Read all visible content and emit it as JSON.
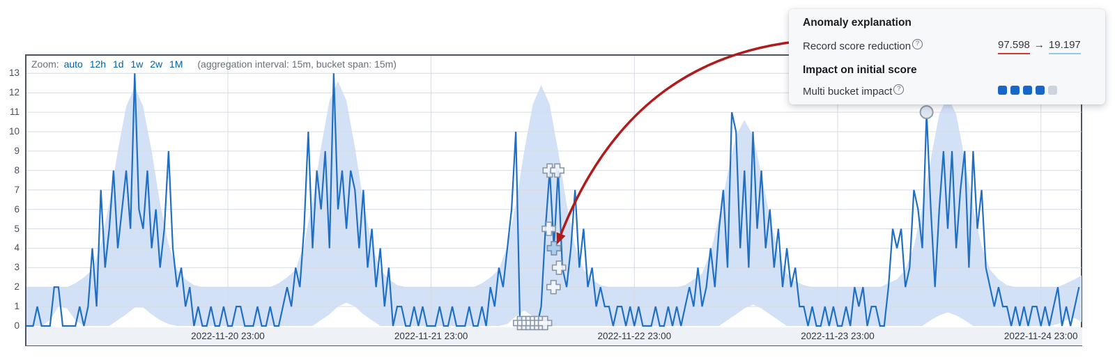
{
  "header": {
    "zoom_label": "Zoom:",
    "zoom_options": [
      "auto",
      "12h",
      "1d",
      "1w",
      "2w",
      "1M"
    ],
    "aggregation_note": "(aggregation interval: 15m, bucket span: 15m)"
  },
  "popup": {
    "title": "Anomaly explanation",
    "help_glyph": "?",
    "record_row": {
      "label": "Record score reduction",
      "score_before": "97.598",
      "arrow": "→",
      "score_after": "19.197"
    },
    "impact_header": "Impact on initial score",
    "impact_row": {
      "label": "Multi bucket impact",
      "filled_squares": 4,
      "total_squares": 5
    }
  },
  "chart_data": {
    "type": "line",
    "y_ticks": [
      0,
      1,
      2,
      3,
      4,
      5,
      6,
      7,
      8,
      9,
      10,
      11,
      12,
      13
    ],
    "x_ticks": [
      {
        "t": 24,
        "label": "2022-11-20 23:00"
      },
      {
        "t": 48,
        "label": "2022-11-21 23:00"
      },
      {
        "t": 72,
        "label": "2022-11-22 23:00"
      },
      {
        "t": 96,
        "label": "2022-11-23 23:00"
      },
      {
        "t": 120,
        "label": "2022-11-24 23:00"
      }
    ],
    "ylim": [
      0,
      13
    ],
    "grid": true,
    "series": [
      {
        "name": "value",
        "t_step_hours": 0.5,
        "values": [
          0,
          0,
          0,
          1,
          0,
          0,
          0,
          2,
          2,
          0,
          0,
          0,
          0,
          1,
          0,
          1,
          4,
          1,
          7,
          3,
          5,
          8,
          4,
          6,
          8,
          5,
          13,
          6,
          5,
          8,
          4,
          6,
          3,
          5,
          9,
          4,
          2,
          3,
          1,
          2,
          0,
          1,
          0,
          0,
          1,
          0,
          0,
          1,
          0,
          0,
          1,
          1,
          0,
          0,
          0,
          1,
          0,
          0,
          1,
          0,
          0,
          1,
          2,
          1,
          3,
          2,
          5,
          10,
          4,
          8,
          6,
          9,
          4,
          13,
          6,
          8,
          5,
          8,
          7,
          4,
          7,
          3,
          5,
          2,
          4,
          1,
          3,
          0,
          1,
          1,
          0,
          0,
          1,
          0,
          1,
          0,
          0,
          0,
          1,
          0,
          0,
          1,
          0,
          0,
          0,
          1,
          0,
          0,
          1,
          0,
          2,
          1,
          3,
          2,
          4,
          6,
          10,
          0,
          0,
          0,
          0,
          0,
          1,
          5,
          8,
          4,
          8,
          3,
          2,
          4,
          7,
          3,
          5,
          2,
          3,
          1,
          2,
          1,
          1,
          0,
          1,
          1,
          0,
          1,
          0,
          1,
          0,
          0,
          0,
          1,
          0,
          0,
          1,
          0,
          1,
          0,
          1,
          2,
          1,
          3,
          1,
          2,
          4,
          2,
          5,
          7,
          3,
          11,
          10,
          4,
          8,
          3,
          10,
          5,
          8,
          4,
          6,
          3,
          5,
          2,
          4,
          2,
          3,
          1,
          1,
          0,
          1,
          0,
          0,
          1,
          0,
          1,
          0,
          0,
          1,
          0,
          2,
          1,
          2,
          0,
          1,
          1,
          0,
          0,
          2,
          5,
          4,
          5,
          2,
          3,
          7,
          6,
          4,
          11,
          6,
          2,
          6,
          9,
          5,
          9,
          4,
          7,
          9,
          3,
          9,
          5,
          7,
          3,
          2,
          1,
          2,
          1,
          1,
          0,
          1,
          0,
          1,
          0,
          1,
          1,
          0,
          1,
          0,
          1,
          2,
          0,
          1,
          0,
          1,
          2
        ]
      },
      {
        "name": "model_bounds_upper",
        "t_step_hours": 1,
        "values": [
          2,
          2,
          2,
          2,
          2,
          2,
          2.2,
          2.5,
          2.9,
          4.2,
          6.3,
          9,
          11.3,
          12.3,
          11.3,
          9,
          6.3,
          4.2,
          2.9,
          2.4,
          2.1,
          2,
          2,
          2,
          2,
          2,
          2,
          2,
          2,
          2,
          2.2,
          2.5,
          2.9,
          4.2,
          6.4,
          9.2,
          11.6,
          12.6,
          11.6,
          9.2,
          6.4,
          4.2,
          2.9,
          2.4,
          2.1,
          2,
          2,
          2,
          2,
          2,
          2,
          2,
          2,
          2,
          2.2,
          2.5,
          2.9,
          4.1,
          6.3,
          9,
          11.4,
          12.4,
          11.4,
          9,
          6.3,
          4.1,
          2.9,
          2.4,
          2.1,
          2,
          2,
          2,
          2,
          2,
          2,
          2,
          2,
          2,
          2.1,
          2.4,
          2.7,
          3.8,
          5.6,
          7.8,
          9.8,
          10.6,
          9.8,
          7.8,
          5.6,
          3.8,
          2.7,
          2.3,
          2.1,
          2,
          2,
          2,
          2,
          2,
          2,
          2,
          2,
          2,
          2.2,
          2.4,
          2.9,
          4.1,
          6.1,
          8.6,
          10.9,
          11.8,
          10.9,
          8.6,
          6.1,
          4.1,
          2.9,
          2.4,
          2.1,
          2,
          2,
          2,
          2,
          2,
          2,
          2.2,
          2.4,
          2.6
        ]
      },
      {
        "name": "model_bounds_lower",
        "t_step_hours": 1,
        "values": [
          0,
          0,
          0,
          0.3,
          1,
          0.9,
          0.3,
          0,
          0,
          0,
          0,
          0.3,
          0.6,
          0.95,
          0.95,
          0.6,
          0.3,
          0.1,
          0,
          0,
          0,
          0,
          0,
          0,
          0,
          0,
          0,
          0,
          0,
          0,
          0,
          0,
          0,
          0,
          0,
          0.3,
          0.6,
          1,
          1.2,
          1,
          0.6,
          0.3,
          0,
          0,
          0,
          0,
          0,
          0,
          0,
          0,
          0,
          0,
          0,
          0,
          0,
          0,
          0,
          0.1,
          0.5,
          0.8,
          0.5,
          0.1,
          0,
          0,
          0,
          0,
          0,
          0,
          0,
          0,
          0,
          0,
          0,
          0,
          0,
          0,
          0,
          0,
          0,
          0,
          0,
          0,
          0,
          0.3,
          0.6,
          0.9,
          1.1,
          0.9,
          0.6,
          0.3,
          0,
          0,
          0,
          0,
          0,
          0,
          0,
          0,
          0,
          0,
          0,
          0,
          0,
          0,
          0,
          0,
          0,
          0.3,
          0.55,
          0.7,
          0.55,
          0.3,
          0,
          0,
          0,
          0,
          0,
          0,
          0,
          0,
          0,
          0,
          0.1,
          0.3,
          0.4,
          0.2,
          0
        ]
      }
    ],
    "anomaly_markers": {
      "multi_bucket_crosses": [
        {
          "t": 62.0,
          "v": 8
        },
        {
          "t": 62.9,
          "v": 8
        },
        {
          "t": 61.9,
          "v": 5
        },
        {
          "t": 62.45,
          "v": 2
        },
        {
          "t": 63.1,
          "v": 3
        }
      ],
      "highlighted_cross": {
        "t": 62.5,
        "v": 4
      },
      "cross_cluster": {
        "v": 0.15,
        "t_list": [
          58.5,
          59.0,
          59.5,
          60.0,
          60.5,
          61.0,
          61.45
        ]
      },
      "circle_marker": {
        "t": 106.5,
        "v": 11
      }
    }
  },
  "colors": {
    "line_blue": "#1f6fc5",
    "band_blue": "#d3e1f6",
    "gridline": "#d6dbe4",
    "chart_border": "#4d545e",
    "axis_band": "#eef1f6",
    "annotation_red": "#b01c1c",
    "underline_red": "#d9372c",
    "underline_blue": "#92c9e8",
    "impact_square_blue": "#1766c8",
    "impact_square_gray": "#ccd4df",
    "link_blue": "#0061a6",
    "text": "#343741",
    "muted_text": "#69707d"
  }
}
